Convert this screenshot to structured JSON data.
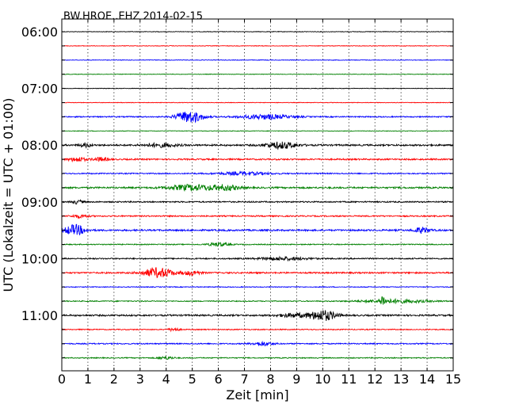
{
  "chart_data": {
    "type": "line",
    "title": "BW.HROE..EHZ 2014-02-15",
    "xlabel": "Zeit  [min]",
    "ylabel": "UTC (Lokalzeit = UTC + 01:00)",
    "xlim": [
      0,
      15
    ],
    "x_ticks": [
      "0",
      "1",
      "2",
      "3",
      "4",
      "5",
      "6",
      "7",
      "8",
      "9",
      "10",
      "11",
      "12",
      "13",
      "14",
      "15"
    ],
    "y_tick_labels": [
      "06:00",
      "07:00",
      "08:00",
      "09:00",
      "10:00",
      "11:00"
    ],
    "grid": "vertical dotted lines at each minute",
    "trace_interval_minutes": 15,
    "colors": [
      "#000000",
      "#ff0000",
      "#0000ff",
      "#008000"
    ],
    "traces": [
      {
        "start": "06:00",
        "color": "#000000",
        "noise": 0.35,
        "events": []
      },
      {
        "start": "06:15",
        "color": "#ff0000",
        "noise": 0.35,
        "events": []
      },
      {
        "start": "06:30",
        "color": "#0000ff",
        "noise": 0.35,
        "events": []
      },
      {
        "start": "06:45",
        "color": "#008000",
        "noise": 0.35,
        "events": []
      },
      {
        "start": "07:00",
        "color": "#000000",
        "noise": 0.35,
        "events": []
      },
      {
        "start": "07:15",
        "color": "#ff0000",
        "noise": 0.35,
        "events": []
      },
      {
        "start": "07:30",
        "color": "#0000ff",
        "noise": 0.7,
        "events": [
          {
            "t": 4.9,
            "amp": 7.5,
            "dur": 0.5
          },
          {
            "t": 7.8,
            "amp": 2.8,
            "dur": 1.0
          }
        ]
      },
      {
        "start": "07:45",
        "color": "#008000",
        "noise": 0.35,
        "events": []
      },
      {
        "start": "08:00",
        "color": "#000000",
        "noise": 1.0,
        "events": [
          {
            "t": 0.9,
            "amp": 2.5,
            "dur": 0.2
          },
          {
            "t": 3.8,
            "amp": 2.2,
            "dur": 0.6
          },
          {
            "t": 8.4,
            "amp": 4.0,
            "dur": 0.6
          }
        ]
      },
      {
        "start": "08:15",
        "color": "#ff0000",
        "noise": 0.9,
        "events": [
          {
            "t": 0.6,
            "amp": 2.8,
            "dur": 0.3
          },
          {
            "t": 1.5,
            "amp": 2.2,
            "dur": 0.3
          }
        ]
      },
      {
        "start": "08:30",
        "color": "#0000ff",
        "noise": 0.7,
        "events": [
          {
            "t": 7.0,
            "amp": 1.8,
            "dur": 1.0
          }
        ]
      },
      {
        "start": "08:45",
        "color": "#008000",
        "noise": 1.0,
        "events": [
          {
            "t": 5.0,
            "amp": 3.5,
            "dur": 0.9
          },
          {
            "t": 6.3,
            "amp": 3.0,
            "dur": 0.5
          }
        ]
      },
      {
        "start": "09:00",
        "color": "#000000",
        "noise": 0.8,
        "events": [
          {
            "t": 0.6,
            "amp": 2.2,
            "dur": 0.2
          }
        ]
      },
      {
        "start": "09:15",
        "color": "#ff0000",
        "noise": 0.8,
        "events": [
          {
            "t": 0.7,
            "amp": 2.0,
            "dur": 0.3
          }
        ]
      },
      {
        "start": "09:30",
        "color": "#0000ff",
        "noise": 1.0,
        "events": [
          {
            "t": 0.5,
            "amp": 6.5,
            "dur": 0.4
          },
          {
            "t": 13.8,
            "amp": 3.5,
            "dur": 0.3
          }
        ]
      },
      {
        "start": "09:45",
        "color": "#008000",
        "noise": 0.6,
        "events": [
          {
            "t": 6.0,
            "amp": 2.2,
            "dur": 0.4
          }
        ]
      },
      {
        "start": "10:00",
        "color": "#000000",
        "noise": 0.8,
        "events": [
          {
            "t": 8.5,
            "amp": 1.8,
            "dur": 0.9
          }
        ]
      },
      {
        "start": "10:15",
        "color": "#ff0000",
        "noise": 0.9,
        "events": [
          {
            "t": 3.7,
            "amp": 6.0,
            "dur": 0.6
          },
          {
            "t": 5.0,
            "amp": 2.8,
            "dur": 0.3
          }
        ]
      },
      {
        "start": "10:30",
        "color": "#0000ff",
        "noise": 0.5,
        "events": []
      },
      {
        "start": "10:45",
        "color": "#008000",
        "noise": 0.6,
        "events": [
          {
            "t": 12.3,
            "amp": 6.0,
            "dur": 0.1
          },
          {
            "t": 12.8,
            "amp": 2.2,
            "dur": 1.3
          }
        ]
      },
      {
        "start": "11:00",
        "color": "#000000",
        "noise": 1.0,
        "events": [
          {
            "t": 10.0,
            "amp": 6.5,
            "dur": 0.5
          },
          {
            "t": 8.9,
            "amp": 2.2,
            "dur": 0.6
          }
        ]
      },
      {
        "start": "11:15",
        "color": "#ff0000",
        "noise": 0.6,
        "events": [
          {
            "t": 4.3,
            "amp": 2.0,
            "dur": 0.2
          }
        ]
      },
      {
        "start": "11:30",
        "color": "#0000ff",
        "noise": 0.7,
        "events": [
          {
            "t": 7.7,
            "amp": 2.5,
            "dur": 0.4
          }
        ]
      },
      {
        "start": "11:45",
        "color": "#008000",
        "noise": 0.6,
        "events": [
          {
            "t": 4.0,
            "amp": 1.8,
            "dur": 0.3
          }
        ]
      }
    ]
  }
}
